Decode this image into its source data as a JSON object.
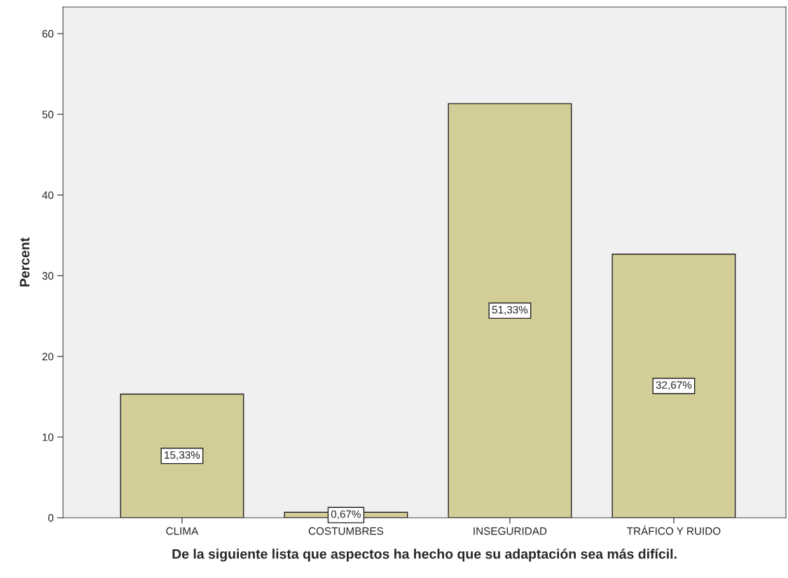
{
  "chart_data": {
    "type": "bar",
    "xlabel": "De la siguiente lista que aspectos ha hecho que su adaptación sea más difícil.",
    "ylabel": "Percent",
    "categories": [
      "CLIMA",
      "COSTUMBRES",
      "INSEGURIDAD",
      "TRÁFICO Y RUIDO"
    ],
    "values": [
      15.33,
      0.67,
      51.33,
      32.67
    ],
    "value_labels": [
      "15,33%",
      "0,67%",
      "51,33%",
      "32,67%"
    ],
    "color": "#d3ce97",
    "ylim": [
      0,
      63.3
    ],
    "yticks": [
      0,
      10,
      20,
      30,
      40,
      50,
      60
    ],
    "grid": false,
    "legend": false
  }
}
